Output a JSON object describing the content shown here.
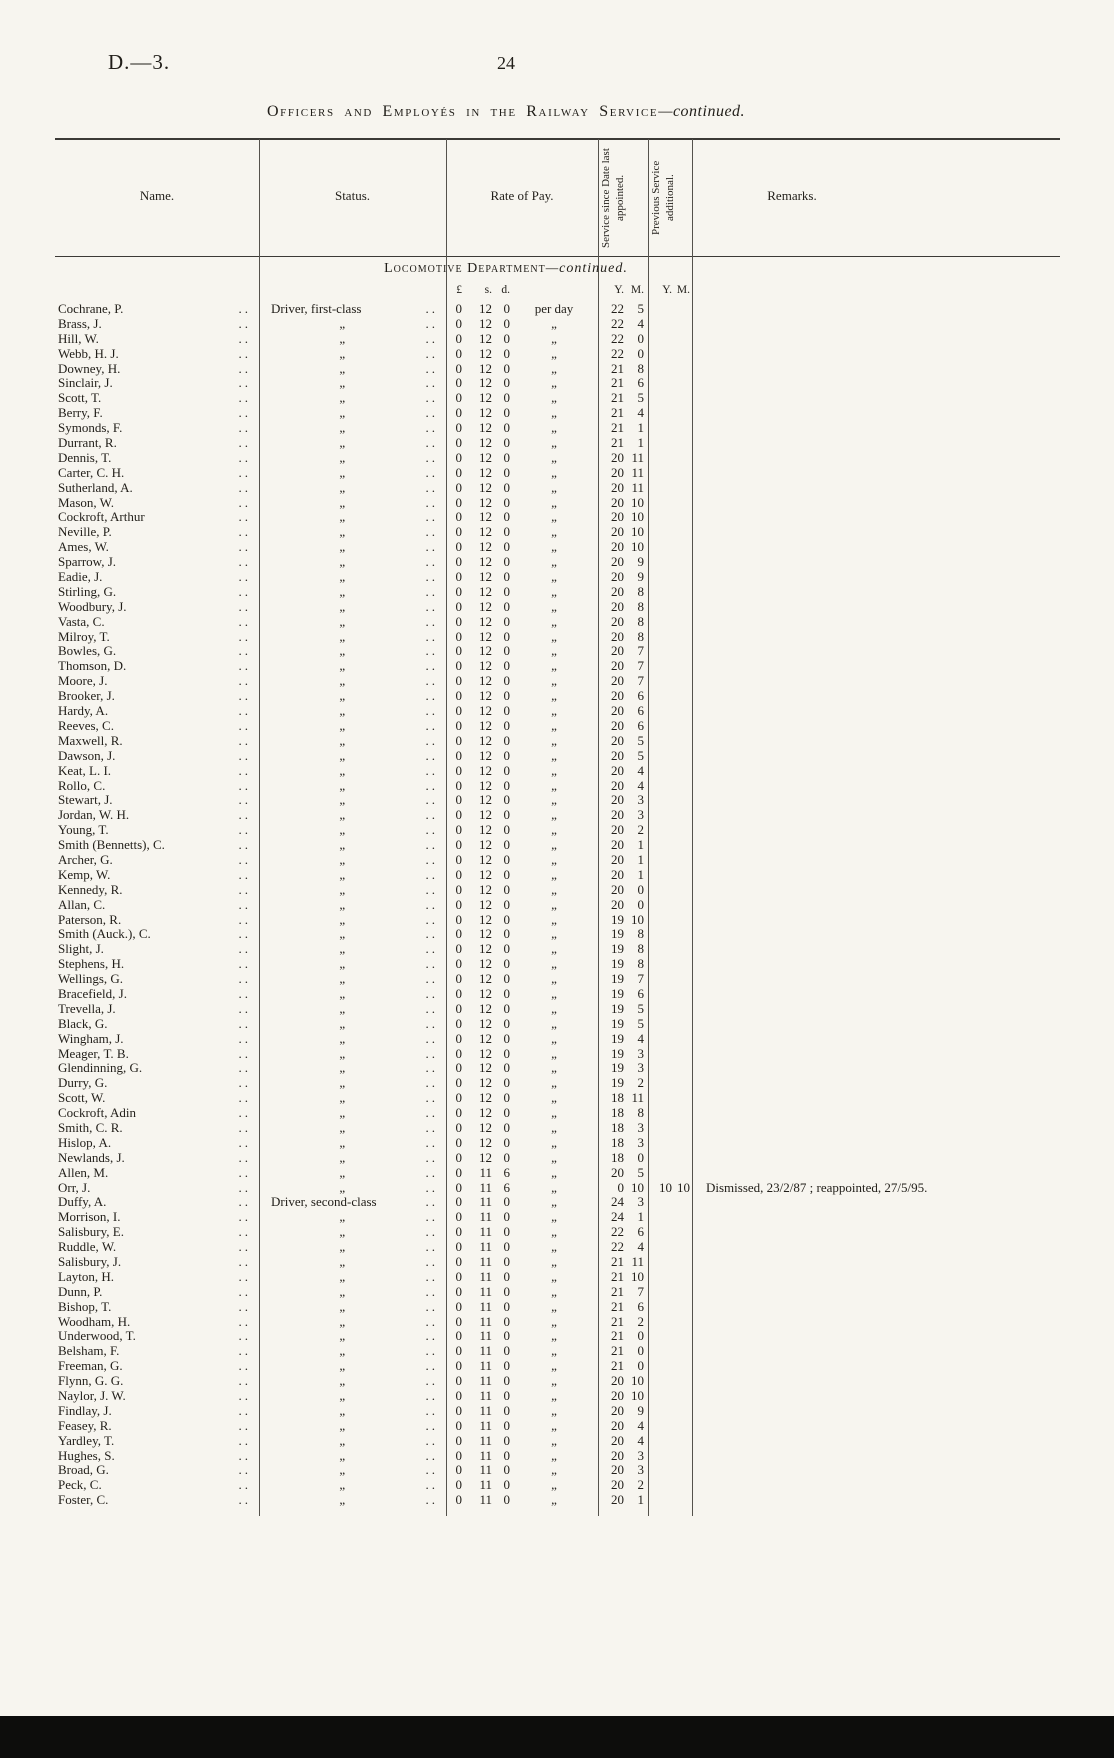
{
  "page": {
    "doc_ref": "D.—3.",
    "page_number": "24",
    "title_main": "Officers and Employés in the Railway Service",
    "title_suffix": "—continued."
  },
  "table": {
    "headers": {
      "name": "Name.",
      "status": "Status.",
      "rate": "Rate of Pay.",
      "service_since": "Service since Date last appointed.",
      "previous_service": "Previous Service additional.",
      "remarks": "Remarks."
    },
    "section_main": "Locomotive Department",
    "section_suffix": "—continued.",
    "units": {
      "pounds": "£",
      "shillings": "s.",
      "pence": "d.",
      "years": "Y.",
      "months": "M."
    },
    "leader_dots": "..",
    "columns": [
      "name",
      "status",
      "rate",
      "rate_unit",
      "service_years",
      "service_months",
      "previous_years",
      "previous_months",
      "remarks"
    ],
    "rows": [
      [
        "Cochrane, P.",
        "Driver, first-class",
        "0 12 0",
        "per day",
        "22",
        "5",
        "",
        "",
        ""
      ],
      [
        "Brass, J.",
        "„",
        "0 12 0",
        "„",
        "22",
        "4",
        "",
        "",
        ""
      ],
      [
        "Hill, W.",
        "„",
        "0 12 0",
        "„",
        "22",
        "0",
        "",
        "",
        ""
      ],
      [
        "Webb, H. J.",
        "„",
        "0 12 0",
        "„",
        "22",
        "0",
        "",
        "",
        ""
      ],
      [
        "Downey, H.",
        "„",
        "0 12 0",
        "„",
        "21",
        "8",
        "",
        "",
        ""
      ],
      [
        "Sinclair, J.",
        "„",
        "0 12 0",
        "„",
        "21",
        "6",
        "",
        "",
        ""
      ],
      [
        "Scott, T.",
        "„",
        "0 12 0",
        "„",
        "21",
        "5",
        "",
        "",
        ""
      ],
      [
        "Berry, F.",
        "„",
        "0 12 0",
        "„",
        "21",
        "4",
        "",
        "",
        ""
      ],
      [
        "Symonds, F.",
        "„",
        "0 12 0",
        "„",
        "21",
        "1",
        "",
        "",
        ""
      ],
      [
        "Durrant, R.",
        "„",
        "0 12 0",
        "„",
        "21",
        "1",
        "",
        "",
        ""
      ],
      [
        "Dennis, T.",
        "„",
        "0 12 0",
        "„",
        "20",
        "11",
        "",
        "",
        ""
      ],
      [
        "Carter, C. H.",
        "„",
        "0 12 0",
        "„",
        "20",
        "11",
        "",
        "",
        ""
      ],
      [
        "Sutherland, A.",
        "„",
        "0 12 0",
        "„",
        "20",
        "11",
        "",
        "",
        ""
      ],
      [
        "Mason, W.",
        "„",
        "0 12 0",
        "„",
        "20",
        "10",
        "",
        "",
        ""
      ],
      [
        "Cockroft, Arthur",
        "„",
        "0 12 0",
        "„",
        "20",
        "10",
        "",
        "",
        ""
      ],
      [
        "Neville, P.",
        "„",
        "0 12 0",
        "„",
        "20",
        "10",
        "",
        "",
        ""
      ],
      [
        "Ames, W.",
        "„",
        "0 12 0",
        "„",
        "20",
        "10",
        "",
        "",
        ""
      ],
      [
        "Sparrow, J.",
        "„",
        "0 12 0",
        "„",
        "20",
        "9",
        "",
        "",
        ""
      ],
      [
        "Eadie, J.",
        "„",
        "0 12 0",
        "„",
        "20",
        "9",
        "",
        "",
        ""
      ],
      [
        "Stirling, G.",
        "„",
        "0 12 0",
        "„",
        "20",
        "8",
        "",
        "",
        ""
      ],
      [
        "Woodbury, J.",
        "„",
        "0 12 0",
        "„",
        "20",
        "8",
        "",
        "",
        ""
      ],
      [
        "Vasta, C.",
        "„",
        "0 12 0",
        "„",
        "20",
        "8",
        "",
        "",
        ""
      ],
      [
        "Milroy, T.",
        "„",
        "0 12 0",
        "„",
        "20",
        "8",
        "",
        "",
        ""
      ],
      [
        "Bowles, G.",
        "„",
        "0 12 0",
        "„",
        "20",
        "7",
        "",
        "",
        ""
      ],
      [
        "Thomson, D.",
        "„",
        "0 12 0",
        "„",
        "20",
        "7",
        "",
        "",
        ""
      ],
      [
        "Moore, J.",
        "„",
        "0 12 0",
        "„",
        "20",
        "7",
        "",
        "",
        ""
      ],
      [
        "Brooker, J.",
        "„",
        "0 12 0",
        "„",
        "20",
        "6",
        "",
        "",
        ""
      ],
      [
        "Hardy, A.",
        "„",
        "0 12 0",
        "„",
        "20",
        "6",
        "",
        "",
        ""
      ],
      [
        "Reeves, C.",
        "„",
        "0 12 0",
        "„",
        "20",
        "6",
        "",
        "",
        ""
      ],
      [
        "Maxwell, R.",
        "„",
        "0 12 0",
        "„",
        "20",
        "5",
        "",
        "",
        ""
      ],
      [
        "Dawson, J.",
        "„",
        "0 12 0",
        "„",
        "20",
        "5",
        "",
        "",
        ""
      ],
      [
        "Keat, L. I.",
        "„",
        "0 12 0",
        "„",
        "20",
        "4",
        "",
        "",
        ""
      ],
      [
        "Rollo, C.",
        "„",
        "0 12 0",
        "„",
        "20",
        "4",
        "",
        "",
        ""
      ],
      [
        "Stewart, J.",
        "„",
        "0 12 0",
        "„",
        "20",
        "3",
        "",
        "",
        ""
      ],
      [
        "Jordan, W. H.",
        "„",
        "0 12 0",
        "„",
        "20",
        "3",
        "",
        "",
        ""
      ],
      [
        "Young, T.",
        "„",
        "0 12 0",
        "„",
        "20",
        "2",
        "",
        "",
        ""
      ],
      [
        "Smith (Bennetts), C.",
        "„",
        "0 12 0",
        "„",
        "20",
        "1",
        "",
        "",
        ""
      ],
      [
        "Archer, G.",
        "„",
        "0 12 0",
        "„",
        "20",
        "1",
        "",
        "",
        ""
      ],
      [
        "Kemp, W.",
        "„",
        "0 12 0",
        "„",
        "20",
        "1",
        "",
        "",
        ""
      ],
      [
        "Kennedy, R.",
        "„",
        "0 12 0",
        "„",
        "20",
        "0",
        "",
        "",
        ""
      ],
      [
        "Allan, C.",
        "„",
        "0 12 0",
        "„",
        "20",
        "0",
        "",
        "",
        ""
      ],
      [
        "Paterson, R.",
        "„",
        "0 12 0",
        "„",
        "19",
        "10",
        "",
        "",
        ""
      ],
      [
        "Smith (Auck.), C.",
        "„",
        "0 12 0",
        "„",
        "19",
        "8",
        "",
        "",
        ""
      ],
      [
        "Slight, J.",
        "„",
        "0 12 0",
        "„",
        "19",
        "8",
        "",
        "",
        ""
      ],
      [
        "Stephens, H.",
        "„",
        "0 12 0",
        "„",
        "19",
        "8",
        "",
        "",
        ""
      ],
      [
        "Wellings, G.",
        "„",
        "0 12 0",
        "„",
        "19",
        "7",
        "",
        "",
        ""
      ],
      [
        "Bracefield, J.",
        "„",
        "0 12 0",
        "„",
        "19",
        "6",
        "",
        "",
        ""
      ],
      [
        "Trevella, J.",
        "„",
        "0 12 0",
        "„",
        "19",
        "5",
        "",
        "",
        ""
      ],
      [
        "Black, G.",
        "„",
        "0 12 0",
        "„",
        "19",
        "5",
        "",
        "",
        ""
      ],
      [
        "Wingham, J.",
        "„",
        "0 12 0",
        "„",
        "19",
        "4",
        "",
        "",
        ""
      ],
      [
        "Meager, T. B.",
        "„",
        "0 12 0",
        "„",
        "19",
        "3",
        "",
        "",
        ""
      ],
      [
        "Glendinning, G.",
        "„",
        "0 12 0",
        "„",
        "19",
        "3",
        "",
        "",
        ""
      ],
      [
        "Durry, G.",
        "„",
        "0 12 0",
        "„",
        "19",
        "2",
        "",
        "",
        ""
      ],
      [
        "Scott, W.",
        "„",
        "0 12 0",
        "„",
        "18",
        "11",
        "",
        "",
        ""
      ],
      [
        "Cockroft, Adin",
        "„",
        "0 12 0",
        "„",
        "18",
        "8",
        "",
        "",
        ""
      ],
      [
        "Smith, C. R.",
        "„",
        "0 12 0",
        "„",
        "18",
        "3",
        "",
        "",
        ""
      ],
      [
        "Hislop, A.",
        "„",
        "0 12 0",
        "„",
        "18",
        "3",
        "",
        "",
        ""
      ],
      [
        "Newlands, J.",
        "„",
        "0 12 0",
        "„",
        "18",
        "0",
        "",
        "",
        ""
      ],
      [
        "Allen, M.",
        "„",
        "0 11 6",
        "„",
        "20",
        "5",
        "",
        "",
        ""
      ],
      [
        "Orr, J.",
        "„",
        "0 11 6",
        "„",
        "0",
        "10",
        "10",
        "10",
        "Dismissed, 23/2/87 ; reappointed, 27/5/95."
      ],
      [
        "Duffy, A.",
        "Driver, second-class",
        "0 11 0",
        "„",
        "24",
        "3",
        "",
        "",
        ""
      ],
      [
        "Morrison, I.",
        "„",
        "0 11 0",
        "„",
        "24",
        "1",
        "",
        "",
        ""
      ],
      [
        "Salisbury, E.",
        "„",
        "0 11 0",
        "„",
        "22",
        "6",
        "",
        "",
        ""
      ],
      [
        "Ruddle, W.",
        "„",
        "0 11 0",
        "„",
        "22",
        "4",
        "",
        "",
        ""
      ],
      [
        "Salisbury, J.",
        "„",
        "0 11 0",
        "„",
        "21",
        "11",
        "",
        "",
        ""
      ],
      [
        "Layton, H.",
        "„",
        "0 11 0",
        "„",
        "21",
        "10",
        "",
        "",
        ""
      ],
      [
        "Dunn, P.",
        "„",
        "0 11 0",
        "„",
        "21",
        "7",
        "",
        "",
        ""
      ],
      [
        "Bishop, T.",
        "„",
        "0 11 0",
        "„",
        "21",
        "6",
        "",
        "",
        ""
      ],
      [
        "Woodham, H.",
        "„",
        "0 11 0",
        "„",
        "21",
        "2",
        "",
        "",
        ""
      ],
      [
        "Underwood, T.",
        "„",
        "0 11 0",
        "„",
        "21",
        "0",
        "",
        "",
        ""
      ],
      [
        "Belsham, F.",
        "„",
        "0 11 0",
        "„",
        "21",
        "0",
        "",
        "",
        ""
      ],
      [
        "Freeman, G.",
        "„",
        "0 11 0",
        "„",
        "21",
        "0",
        "",
        "",
        ""
      ],
      [
        "Flynn, G. G.",
        "„",
        "0 11 0",
        "„",
        "20",
        "10",
        "",
        "",
        ""
      ],
      [
        "Naylor, J. W.",
        "„",
        "0 11 0",
        "„",
        "20",
        "10",
        "",
        "",
        ""
      ],
      [
        "Findlay, J.",
        "„",
        "0 11 0",
        "„",
        "20",
        "9",
        "",
        "",
        ""
      ],
      [
        "Feasey, R.",
        "„",
        "0 11 0",
        "„",
        "20",
        "4",
        "",
        "",
        ""
      ],
      [
        "Yardley, T.",
        "„",
        "0 11 0",
        "„",
        "20",
        "4",
        "",
        "",
        ""
      ],
      [
        "Hughes, S.",
        "„",
        "0 11 0",
        "„",
        "20",
        "3",
        "",
        "",
        ""
      ],
      [
        "Broad, G.",
        "„",
        "0 11 0",
        "„",
        "20",
        "3",
        "",
        "",
        ""
      ],
      [
        "Peck, C.",
        "„",
        "0 11 0",
        "„",
        "20",
        "2",
        "",
        "",
        ""
      ],
      [
        "Foster, C.",
        "„",
        "0 11 0",
        "„",
        "20",
        "1",
        "",
        "",
        ""
      ]
    ]
  }
}
